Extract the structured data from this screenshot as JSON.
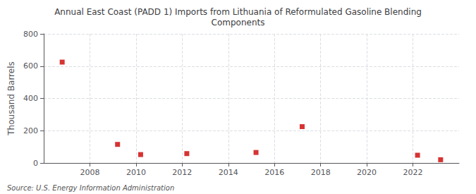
{
  "chart_data": {
    "type": "scatter",
    "title": "Annual East Coast (PADD 1) Imports from Lithuania of Reformulated Gasoline Blending\nComponents",
    "ylabel": "Thousand Barrels",
    "annotation": "Source: U.S. Energy Information Administration",
    "x": [
      2006.8,
      2009.2,
      2010.2,
      2012.2,
      2015.2,
      2017.2,
      2022.2,
      2023.2
    ],
    "values": [
      625,
      115,
      52,
      58,
      65,
      225,
      48,
      20
    ],
    "color": "#cc0000",
    "marker": "square",
    "xlim": [
      2006,
      2024
    ],
    "xticks": [
      2008,
      2010,
      2012,
      2014,
      2016,
      2018,
      2020,
      2022
    ],
    "ylim": [
      0,
      800
    ],
    "yticks": [
      0,
      200,
      400,
      600,
      800
    ],
    "grid": true
  }
}
